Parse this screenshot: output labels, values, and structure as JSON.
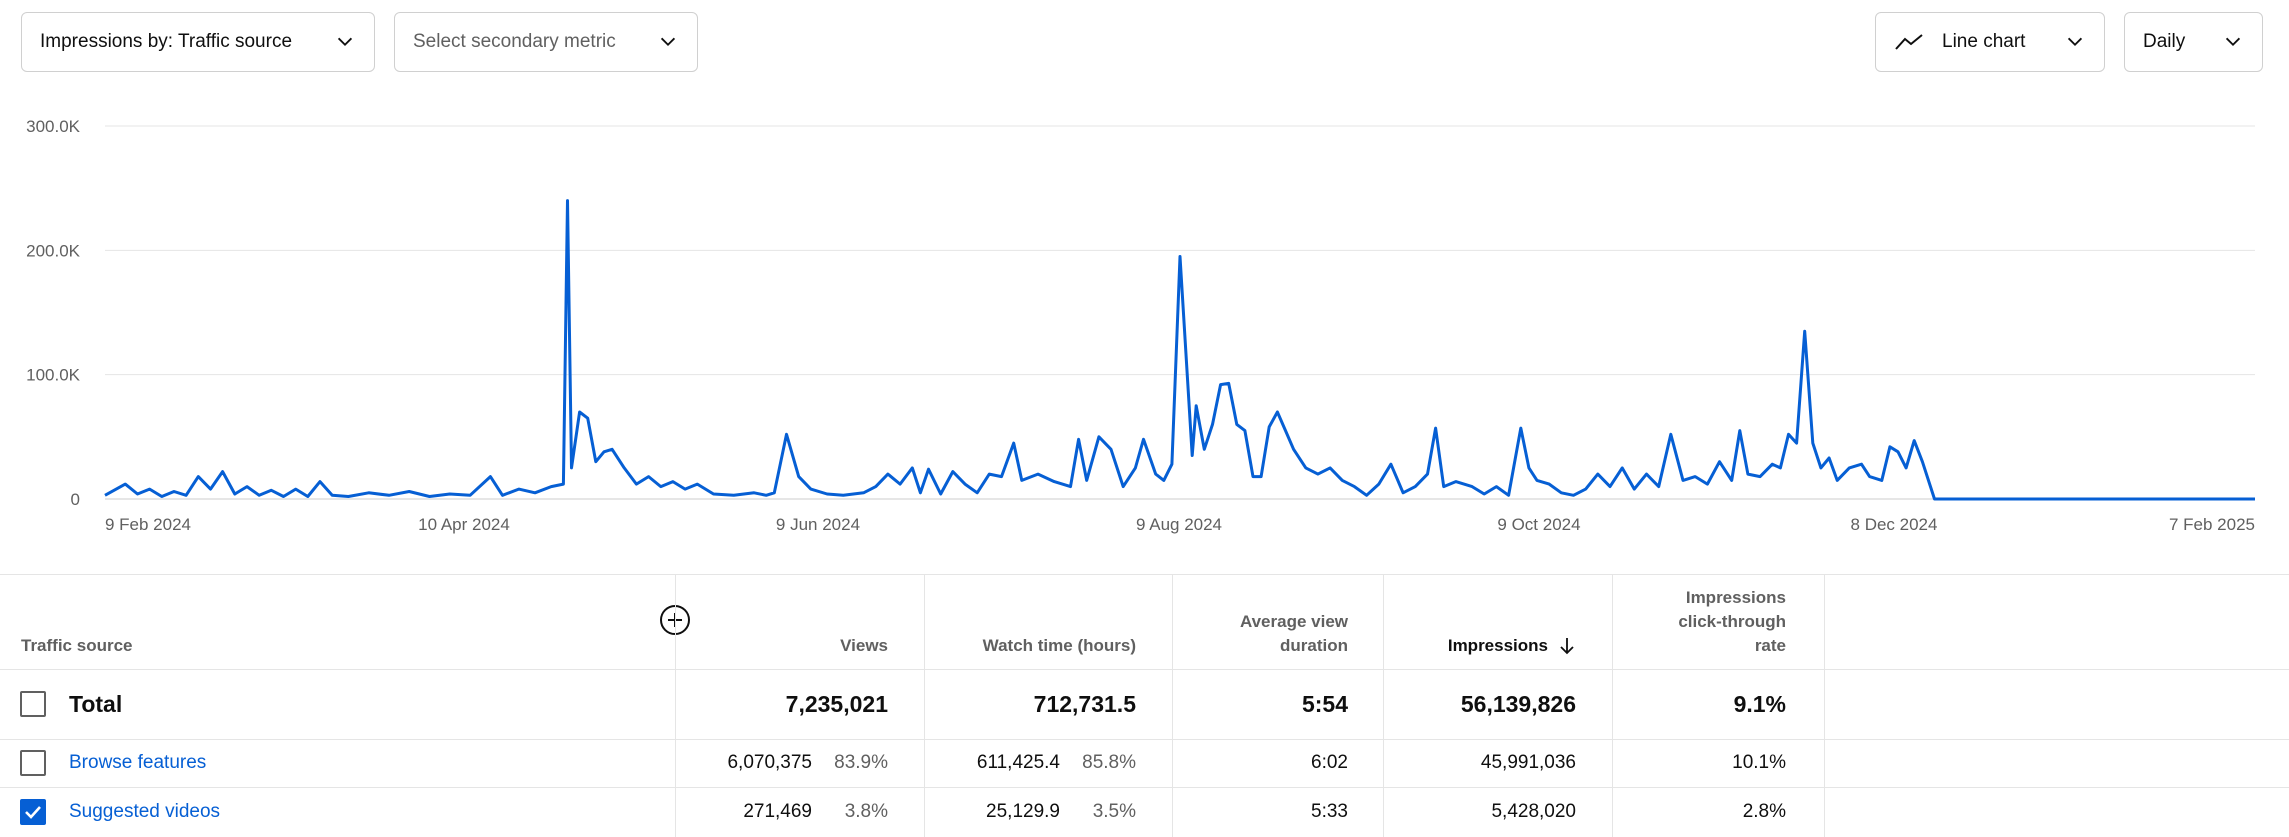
{
  "controls": {
    "primary_metric": "Impressions by: Traffic source",
    "secondary_metric": "Select secondary metric",
    "chart_type": "Line chart",
    "granularity": "Daily"
  },
  "chart_data": {
    "type": "line",
    "y_ticks": [
      "300.0K",
      "200.0K",
      "100.0K",
      "0"
    ],
    "ylim": [
      0,
      300000
    ],
    "x_tick_labels": [
      "9 Feb 2024",
      "10 Apr 2024",
      "9 Jun 2024",
      "9 Aug 2024",
      "9 Oct 2024",
      "8 Dec 2024",
      "7 Feb 2025"
    ],
    "grid": true,
    "color": "#065fd4",
    "series": [
      {
        "points": [
          [
            0,
            3000
          ],
          [
            5,
            12000
          ],
          [
            8,
            4000
          ],
          [
            11,
            8000
          ],
          [
            14,
            2000
          ],
          [
            17,
            6000
          ],
          [
            20,
            3000
          ],
          [
            23,
            18000
          ],
          [
            26,
            8000
          ],
          [
            29,
            22000
          ],
          [
            32,
            4000
          ],
          [
            35,
            10000
          ],
          [
            38,
            3000
          ],
          [
            41,
            7000
          ],
          [
            44,
            2000
          ],
          [
            47,
            8000
          ],
          [
            50,
            2000
          ],
          [
            53,
            14000
          ],
          [
            56,
            3000
          ],
          [
            60,
            2000
          ],
          [
            65,
            5000
          ],
          [
            70,
            3000
          ],
          [
            75,
            6000
          ],
          [
            80,
            2000
          ],
          [
            85,
            4000
          ],
          [
            90,
            3000
          ],
          [
            95,
            18000
          ],
          [
            98,
            3000
          ],
          [
            102,
            8000
          ],
          [
            106,
            5000
          ],
          [
            110,
            10000
          ],
          [
            113,
            12000
          ],
          [
            114,
            240000
          ],
          [
            115,
            25000
          ],
          [
            117,
            70000
          ],
          [
            119,
            65000
          ],
          [
            121,
            30000
          ],
          [
            123,
            38000
          ],
          [
            125,
            40000
          ],
          [
            128,
            25000
          ],
          [
            131,
            12000
          ],
          [
            134,
            18000
          ],
          [
            137,
            10000
          ],
          [
            140,
            14000
          ],
          [
            143,
            8000
          ],
          [
            146,
            12000
          ],
          [
            150,
            4000
          ],
          [
            155,
            3000
          ],
          [
            160,
            5000
          ],
          [
            163,
            3000
          ],
          [
            165,
            5000
          ],
          [
            168,
            52000
          ],
          [
            171,
            18000
          ],
          [
            174,
            8000
          ],
          [
            178,
            4000
          ],
          [
            182,
            3000
          ],
          [
            187,
            5000
          ],
          [
            190,
            10000
          ],
          [
            193,
            20000
          ],
          [
            196,
            12000
          ],
          [
            199,
            25000
          ],
          [
            201,
            5000
          ],
          [
            203,
            24000
          ],
          [
            206,
            4000
          ],
          [
            209,
            22000
          ],
          [
            212,
            12000
          ],
          [
            215,
            5000
          ],
          [
            218,
            20000
          ],
          [
            221,
            18000
          ],
          [
            224,
            45000
          ],
          [
            226,
            15000
          ],
          [
            230,
            20000
          ],
          [
            234,
            14000
          ],
          [
            238,
            10000
          ],
          [
            240,
            48000
          ],
          [
            242,
            15000
          ],
          [
            245,
            50000
          ],
          [
            248,
            40000
          ],
          [
            251,
            10000
          ],
          [
            254,
            25000
          ],
          [
            256,
            48000
          ],
          [
            259,
            20000
          ],
          [
            261,
            15000
          ],
          [
            263,
            28000
          ],
          [
            265,
            195000
          ],
          [
            268,
            35000
          ],
          [
            269,
            75000
          ],
          [
            271,
            40000
          ],
          [
            273,
            60000
          ],
          [
            275,
            92000
          ],
          [
            277,
            93000
          ],
          [
            279,
            60000
          ],
          [
            281,
            55000
          ],
          [
            283,
            18000
          ],
          [
            285,
            18000
          ],
          [
            287,
            58000
          ],
          [
            289,
            70000
          ],
          [
            291,
            55000
          ],
          [
            293,
            40000
          ],
          [
            296,
            25000
          ],
          [
            299,
            20000
          ],
          [
            302,
            25000
          ],
          [
            305,
            15000
          ],
          [
            308,
            10000
          ],
          [
            311,
            3000
          ],
          [
            314,
            12000
          ],
          [
            317,
            28000
          ],
          [
            320,
            5000
          ],
          [
            323,
            10000
          ],
          [
            326,
            20000
          ],
          [
            328,
            57000
          ],
          [
            330,
            10000
          ],
          [
            333,
            14000
          ],
          [
            337,
            10000
          ],
          [
            340,
            4000
          ],
          [
            343,
            10000
          ],
          [
            346,
            3000
          ],
          [
            349,
            57000
          ],
          [
            351,
            25000
          ],
          [
            353,
            15000
          ],
          [
            356,
            12000
          ],
          [
            359,
            5000
          ],
          [
            362,
            3000
          ],
          [
            365,
            8000
          ],
          [
            368,
            20000
          ],
          [
            371,
            10000
          ],
          [
            374,
            25000
          ],
          [
            377,
            8000
          ],
          [
            380,
            20000
          ],
          [
            383,
            10000
          ],
          [
            386,
            52000
          ],
          [
            389,
            15000
          ],
          [
            392,
            18000
          ],
          [
            395,
            12000
          ],
          [
            398,
            30000
          ],
          [
            401,
            15000
          ],
          [
            403,
            55000
          ],
          [
            405,
            20000
          ],
          [
            408,
            18000
          ],
          [
            411,
            28000
          ],
          [
            413,
            25000
          ],
          [
            415,
            52000
          ],
          [
            417,
            45000
          ],
          [
            419,
            135000
          ],
          [
            421,
            45000
          ],
          [
            423,
            25000
          ],
          [
            425,
            33000
          ],
          [
            427,
            15000
          ],
          [
            430,
            25000
          ],
          [
            433,
            28000
          ],
          [
            435,
            18000
          ],
          [
            438,
            15000
          ],
          [
            440,
            42000
          ],
          [
            442,
            38000
          ],
          [
            444,
            25000
          ],
          [
            446,
            47000
          ],
          [
            448,
            30000
          ],
          [
            451,
            0
          ],
          [
            530,
            0
          ]
        ]
      }
    ]
  },
  "table": {
    "headers": {
      "traffic_source": "Traffic source",
      "views": "Views",
      "watch_time": "Watch time (hours)",
      "avg_duration_l1": "Average view",
      "avg_duration_l2": "duration",
      "impressions": "Impressions",
      "ctr_l1": "Impressions",
      "ctr_l2": "click-through",
      "ctr_l3": "rate"
    },
    "total": {
      "label": "Total",
      "views": "7,235,021",
      "watch_time": "712,731.5",
      "avg_duration": "5:54",
      "impressions": "56,139,826",
      "ctr": "9.1%"
    },
    "rows": [
      {
        "label": "Browse features",
        "views": "6,070,375",
        "views_pct": "83.9%",
        "watch_time": "611,425.4",
        "watch_pct": "85.8%",
        "avg_duration": "6:02",
        "impressions": "45,991,036",
        "ctr": "10.1%"
      },
      {
        "label": "Suggested videos",
        "views": "271,469",
        "views_pct": "3.8%",
        "watch_time": "25,129.9",
        "watch_pct": "3.5%",
        "avg_duration": "5:33",
        "impressions": "5,428,020",
        "ctr": "2.8%"
      }
    ]
  }
}
